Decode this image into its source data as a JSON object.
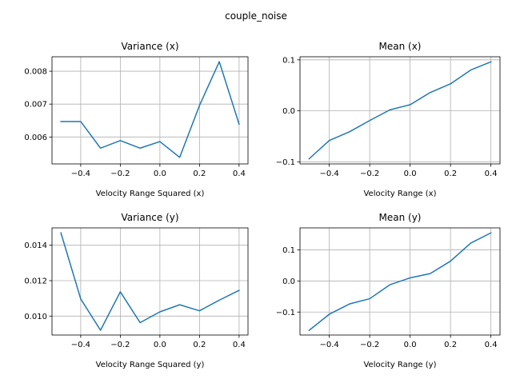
{
  "figure": {
    "suptitle": "couple_noise"
  },
  "colors": {
    "series": "#1f77b4",
    "grid": "#b0b0b0",
    "axes": "#000000",
    "background": "#ffffff"
  },
  "chart_data": [
    {
      "type": "line",
      "title": "Variance (x)",
      "xlabel": "Velocity Range Squared (x)",
      "ylabel": "",
      "grid": true,
      "xlim": [
        -0.545,
        0.445
      ],
      "ylim": [
        0.00518,
        0.00844
      ],
      "xticks": [
        -0.4,
        -0.2,
        0.0,
        0.2,
        0.4
      ],
      "xticklabels": [
        "−0.4",
        "−0.2",
        "0.0",
        "0.2",
        "0.4"
      ],
      "yticks": [
        0.006,
        0.007,
        0.008
      ],
      "yticklabels": [
        "0.006",
        "0.007",
        "0.008"
      ],
      "x": [
        -0.5,
        -0.4,
        -0.3,
        -0.2,
        -0.1,
        0.0,
        0.1,
        0.2,
        0.3,
        0.4
      ],
      "y": [
        0.00647,
        0.00647,
        0.00566,
        0.00589,
        0.00566,
        0.00586,
        0.00538,
        0.00696,
        0.00829,
        0.00639
      ]
    },
    {
      "type": "line",
      "title": "Mean (x)",
      "xlabel": "Velocity Range (x)",
      "ylabel": "",
      "grid": true,
      "xlim": [
        -0.545,
        0.445
      ],
      "ylim": [
        -0.104,
        0.106
      ],
      "xticks": [
        -0.4,
        -0.2,
        0.0,
        0.2,
        0.4
      ],
      "xticklabels": [
        "−0.4",
        "−0.2",
        "0.0",
        "0.2",
        "0.4"
      ],
      "yticks": [
        -0.1,
        0.0,
        0.1
      ],
      "yticklabels": [
        "−0.1",
        "0.0",
        "0.1"
      ],
      "x": [
        -0.5,
        -0.4,
        -0.3,
        -0.2,
        -0.1,
        0.0,
        0.1,
        0.2,
        0.3,
        0.4
      ],
      "y": [
        -0.094,
        -0.058,
        -0.041,
        -0.019,
        0.002,
        0.012,
        0.036,
        0.053,
        0.08,
        0.096
      ]
    },
    {
      "type": "line",
      "title": "Variance (y)",
      "xlabel": "Velocity Range Squared (y)",
      "ylabel": "",
      "grid": true,
      "xlim": [
        -0.545,
        0.445
      ],
      "ylim": [
        0.00893,
        0.01498
      ],
      "xticks": [
        -0.4,
        -0.2,
        0.0,
        0.2,
        0.4
      ],
      "xticklabels": [
        "−0.4",
        "−0.2",
        "0.0",
        "0.2",
        "0.4"
      ],
      "yticks": [
        0.01,
        0.012,
        0.014
      ],
      "yticklabels": [
        "0.010",
        "0.012",
        "0.014"
      ],
      "x": [
        -0.5,
        -0.4,
        -0.3,
        -0.2,
        -0.1,
        0.0,
        0.1,
        0.2,
        0.3,
        0.4
      ],
      "y": [
        0.0147,
        0.01097,
        0.0092,
        0.01137,
        0.00963,
        0.01024,
        0.01064,
        0.0103,
        0.0109,
        0.01145
      ]
    },
    {
      "type": "line",
      "title": "Mean (y)",
      "xlabel": "Velocity Range (y)",
      "ylabel": "",
      "grid": true,
      "xlim": [
        -0.545,
        0.445
      ],
      "ylim": [
        -0.174,
        0.171
      ],
      "xticks": [
        -0.4,
        -0.2,
        0.0,
        0.2,
        0.4
      ],
      "xticklabels": [
        "−0.4",
        "−0.2",
        "0.0",
        "0.2",
        "0.4"
      ],
      "yticks": [
        -0.1,
        0.0,
        0.1
      ],
      "yticklabels": [
        "−0.1",
        "0.0",
        "0.1"
      ],
      "x": [
        -0.5,
        -0.4,
        -0.3,
        -0.2,
        -0.1,
        0.0,
        0.1,
        0.2,
        0.3,
        0.4
      ],
      "y": [
        -0.159,
        -0.107,
        -0.074,
        -0.057,
        -0.012,
        0.01,
        0.024,
        0.064,
        0.122,
        0.155
      ]
    }
  ]
}
